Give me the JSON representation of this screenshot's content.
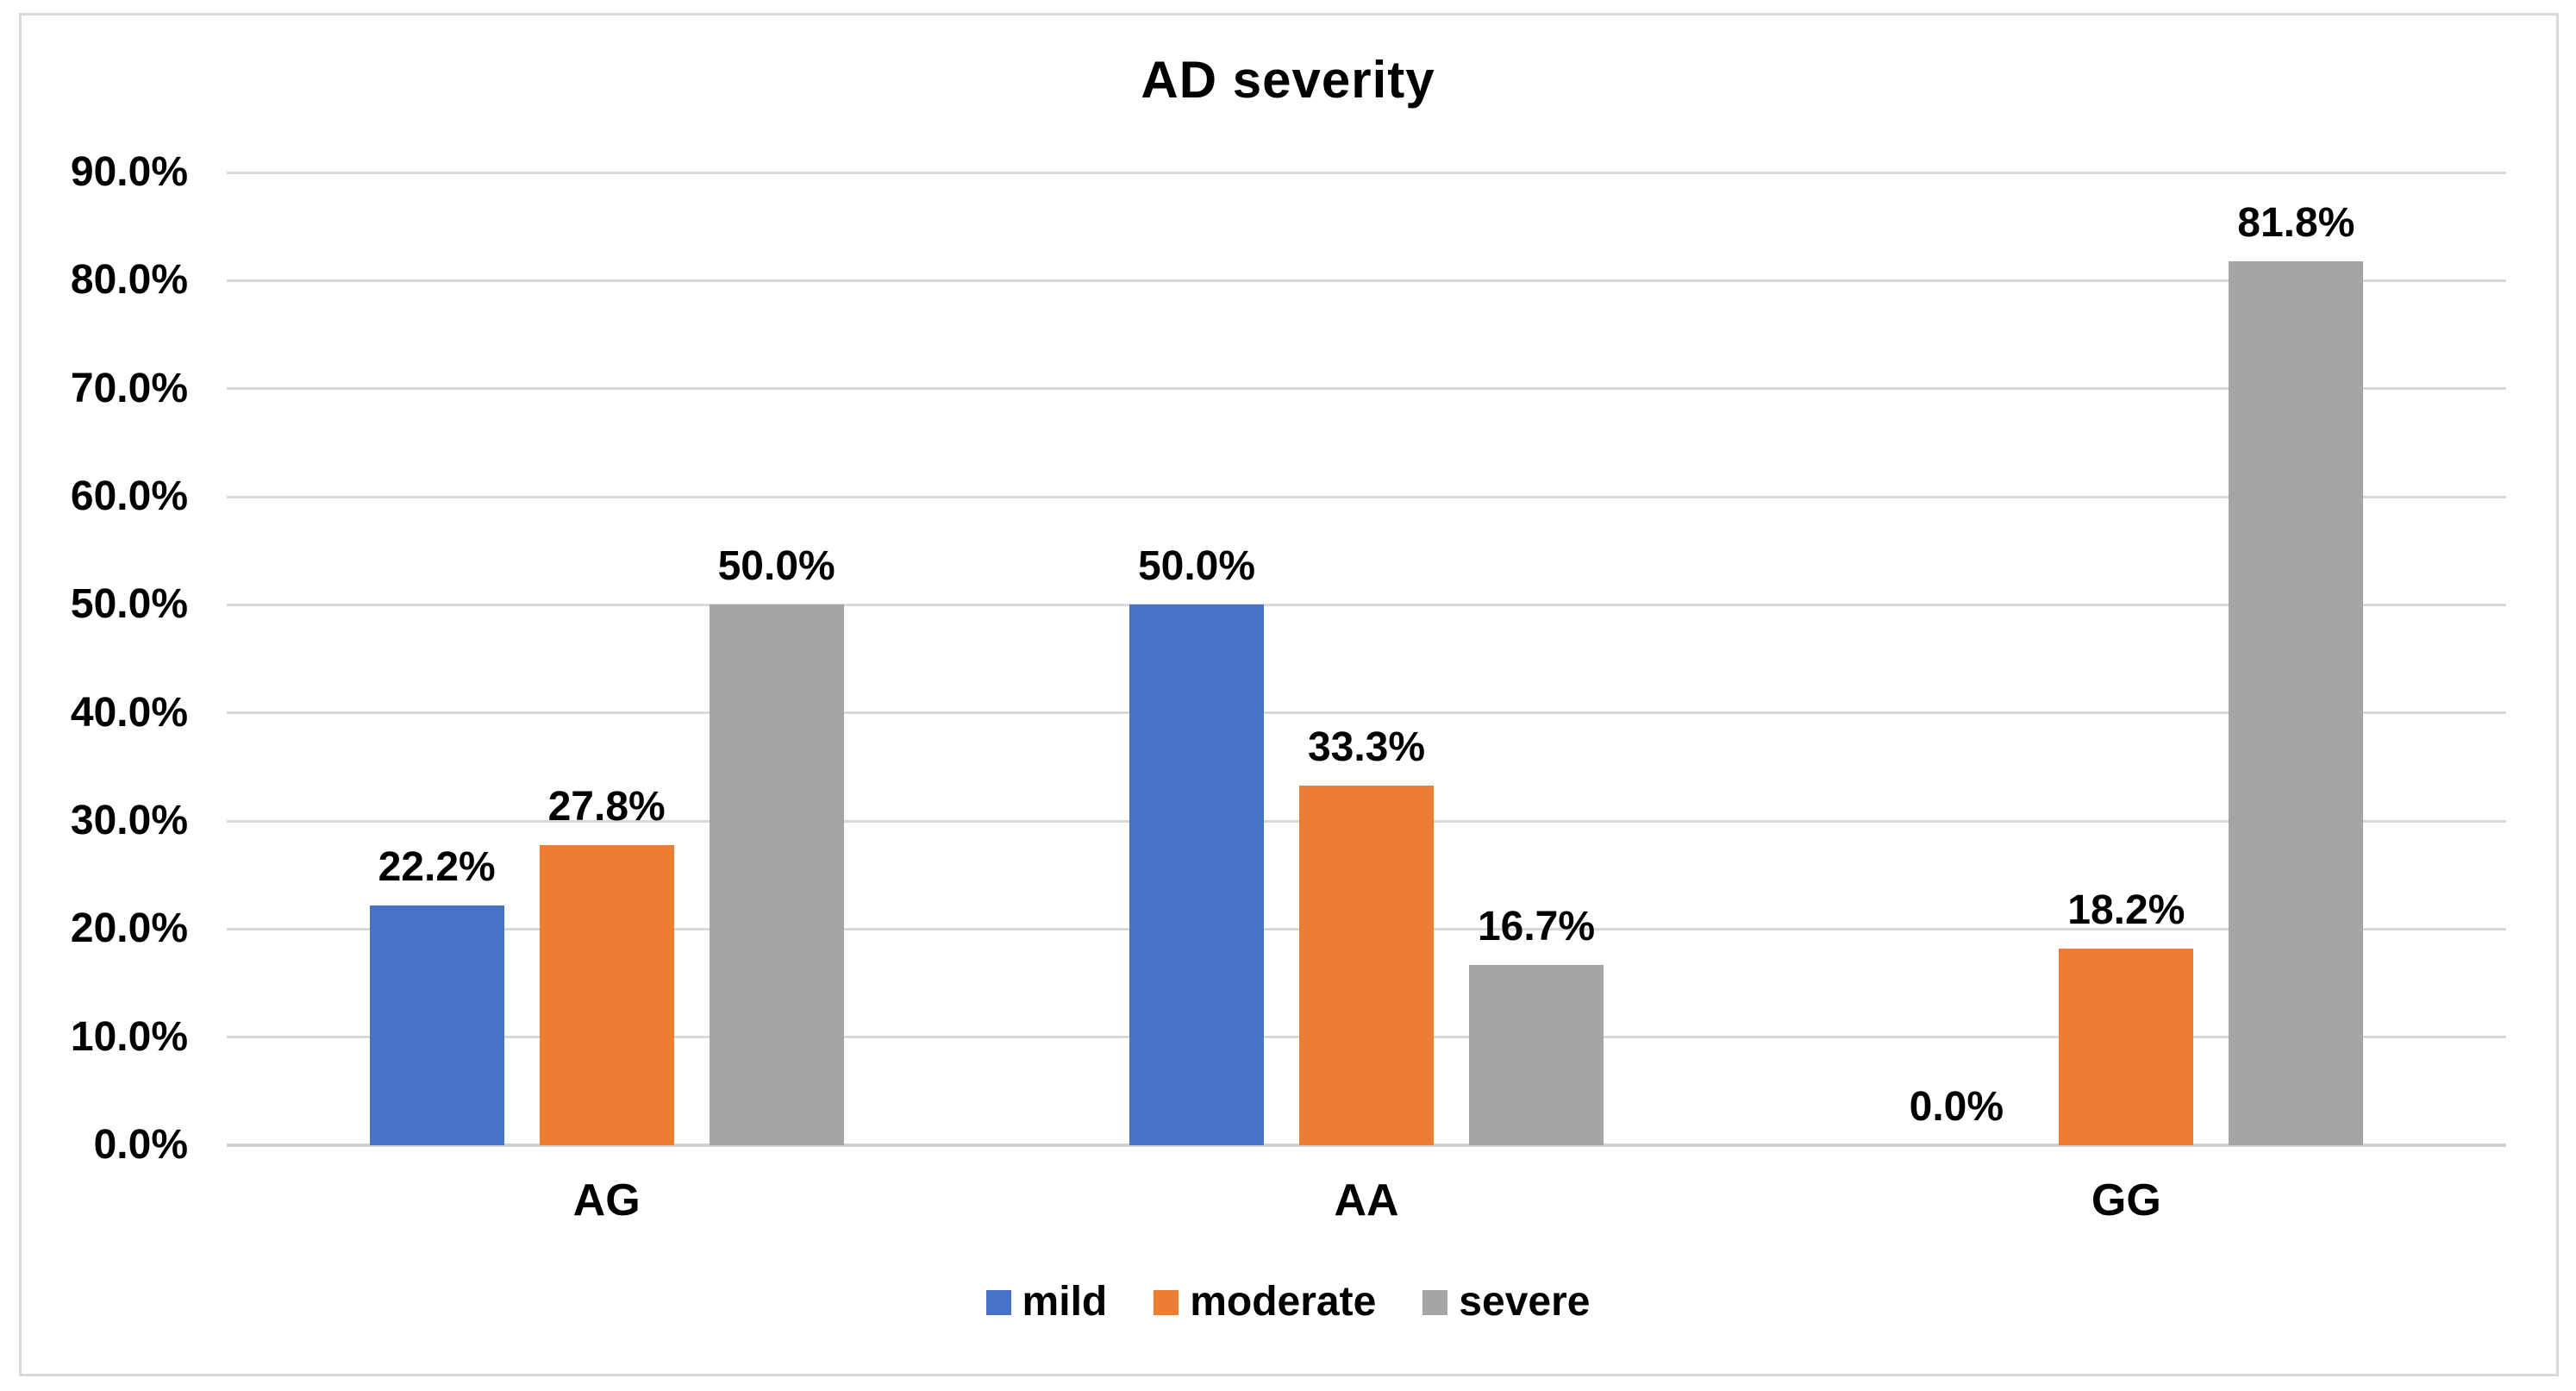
{
  "chart_data": {
    "type": "bar",
    "title": "AD severity",
    "categories": [
      "AG",
      "AA",
      "GG"
    ],
    "series": [
      {
        "name": "mild",
        "color": "#4472C4",
        "values": [
          22.2,
          50.0,
          0.0
        ],
        "data_labels": [
          "22.2%",
          "50.0%",
          "0.0%"
        ]
      },
      {
        "name": "moderate",
        "color": "#ED7D31",
        "values": [
          27.8,
          33.3,
          18.2
        ],
        "data_labels": [
          "27.8%",
          "33.3%",
          "18.2%"
        ]
      },
      {
        "name": "severe",
        "color": "#A5A5A5",
        "values": [
          50.0,
          16.7,
          81.8
        ],
        "data_labels": [
          "50.0%",
          "16.7%",
          "81.8%"
        ]
      }
    ],
    "xlabel": "",
    "ylabel": "",
    "ylim": [
      0,
      90
    ],
    "ytick_step": 10,
    "ytick_labels": [
      "0.0%",
      "10.0%",
      "20.0%",
      "30.0%",
      "40.0%",
      "50.0%",
      "60.0%",
      "70.0%",
      "80.0%",
      "90.0%"
    ],
    "grid": true,
    "legend_position": "bottom",
    "legend": [
      "mild",
      "moderate",
      "severe"
    ]
  },
  "styles": {
    "background": "#FFFFFF",
    "border_color": "#D9D9D9",
    "gridline_color": "#D9D9D9",
    "axis_line_color": "#D0D0D0",
    "text_color": "#000000"
  }
}
